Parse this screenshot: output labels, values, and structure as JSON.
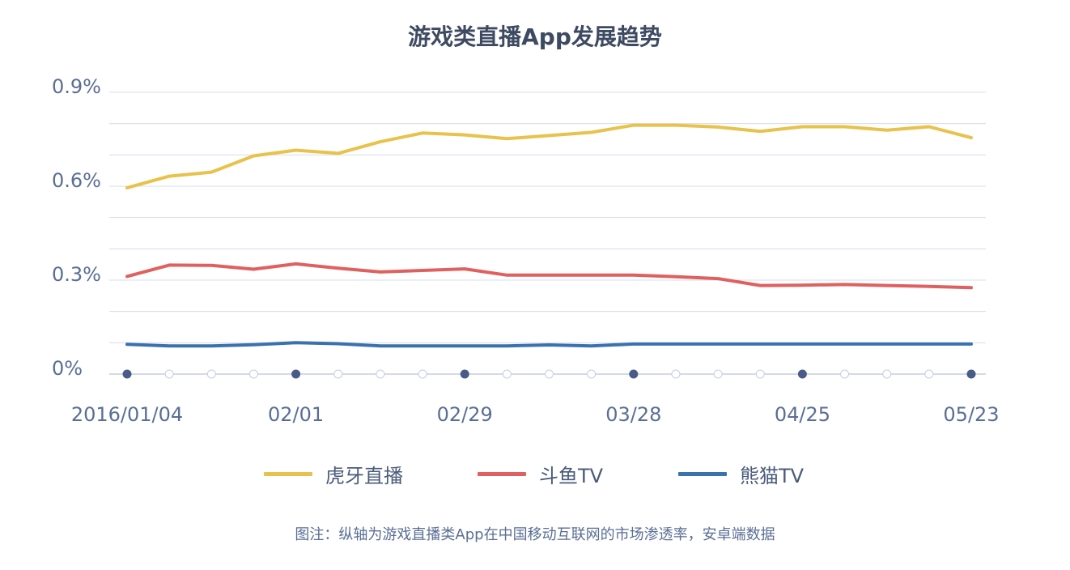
{
  "chart_data": {
    "type": "line",
    "title": "游戏类直播App发展趋势",
    "ylabel": "",
    "xlabel": "",
    "ylim": [
      0,
      0.9
    ],
    "yticks": [
      "0%",
      "0.3%",
      "0.6%",
      "0.9%"
    ],
    "y_tick_values": [
      0,
      0.3,
      0.6,
      0.9
    ],
    "x_tick_labels": [
      "2016/01/04",
      "02/01",
      "02/29",
      "03/28",
      "04/25",
      "05/23"
    ],
    "x_tick_indices": [
      0,
      4,
      8,
      12,
      16,
      20
    ],
    "x_count": 21,
    "grid": true,
    "legend_position": "bottom",
    "series": [
      {
        "name": "虎牙直播",
        "color": "#e8c24a",
        "values": [
          0.595,
          0.632,
          0.645,
          0.697,
          0.715,
          0.705,
          0.742,
          0.77,
          0.764,
          0.752,
          0.762,
          0.772,
          0.795,
          0.795,
          0.789,
          0.775,
          0.79,
          0.79,
          0.779,
          0.79,
          0.755
        ]
      },
      {
        "name": "斗鱼TV",
        "color": "#e06060",
        "values": [
          0.312,
          0.348,
          0.347,
          0.335,
          0.352,
          0.338,
          0.326,
          0.331,
          0.336,
          0.316,
          0.316,
          0.316,
          0.316,
          0.311,
          0.305,
          0.283,
          0.284,
          0.286,
          0.283,
          0.28,
          0.276
        ]
      },
      {
        "name": "熊猫TV",
        "color": "#3a72b0",
        "values": [
          0.095,
          0.09,
          0.09,
          0.094,
          0.1,
          0.097,
          0.09,
          0.09,
          0.09,
          0.09,
          0.093,
          0.09,
          0.096,
          0.096,
          0.096,
          0.096,
          0.096,
          0.096,
          0.096,
          0.096,
          0.096
        ]
      }
    ]
  },
  "legend": {
    "items": [
      "虎牙直播",
      "斗鱼TV",
      "熊猫TV"
    ]
  },
  "caption": "图注：纵轴为游戏直播类App在中国移动互联网的市场渗透率，安卓端数据",
  "colors": {
    "grid": "#d6dcee",
    "axis": "#c5cde4",
    "marker_filled": "#4a5b88",
    "marker_empty": "#ffffff",
    "text": "#5a6e95"
  }
}
